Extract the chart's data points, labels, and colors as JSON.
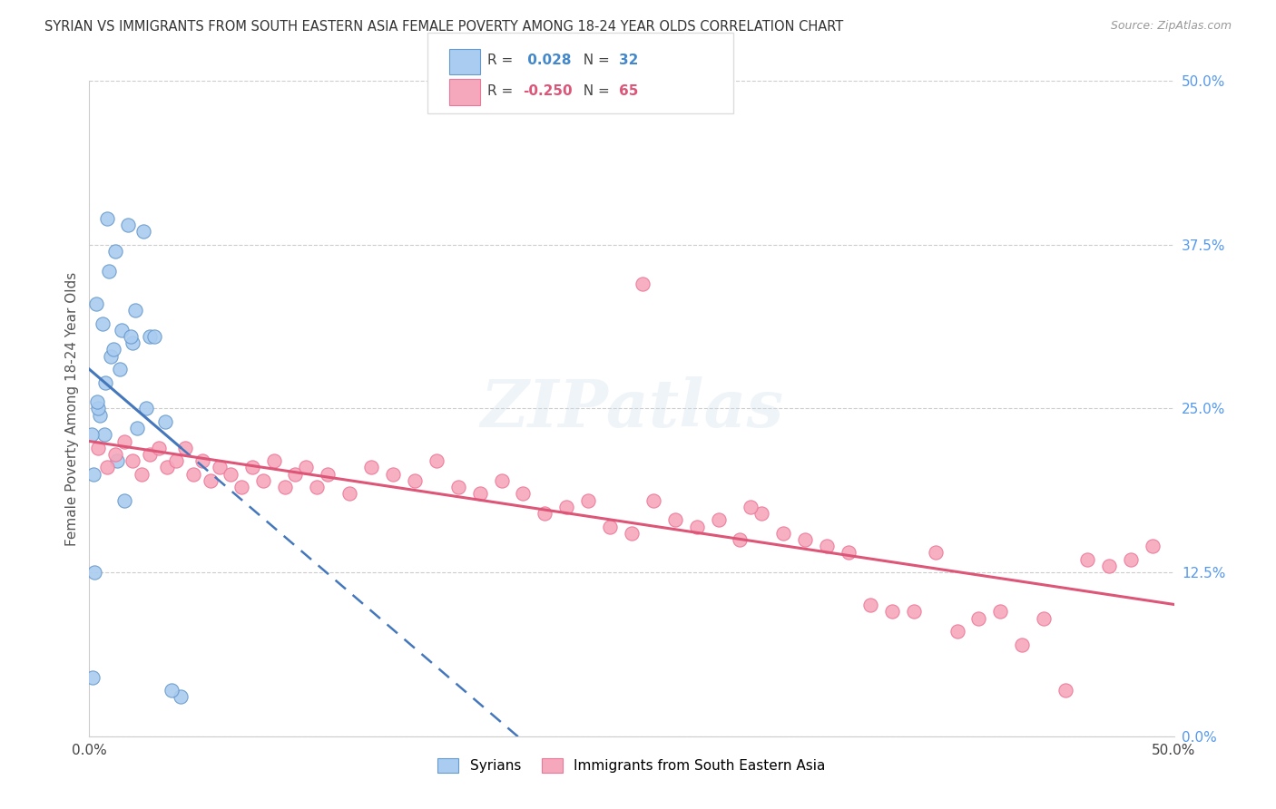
{
  "title": "SYRIAN VS IMMIGRANTS FROM SOUTH EASTERN ASIA FEMALE POVERTY AMONG 18-24 YEAR OLDS CORRELATION CHART",
  "source": "Source: ZipAtlas.com",
  "ylabel": "Female Poverty Among 18-24 Year Olds",
  "ytick_labels": [
    "0.0%",
    "12.5%",
    "25.0%",
    "37.5%",
    "50.0%"
  ],
  "ytick_values": [
    0.0,
    12.5,
    25.0,
    37.5,
    50.0
  ],
  "xlim": [
    0.0,
    50.0
  ],
  "ylim": [
    0.0,
    50.0
  ],
  "blue_R": 0.028,
  "blue_N": 32,
  "pink_R": -0.25,
  "pink_N": 65,
  "blue_color": "#aaccf0",
  "pink_color": "#f5a8bc",
  "blue_edge_color": "#6699cc",
  "pink_edge_color": "#ee7799",
  "blue_line_color": "#4477bb",
  "pink_line_color": "#dd5577",
  "watermark": "ZIPatlas",
  "legend_blue_label": "Syrians",
  "legend_pink_label": "Immigrants from South Eastern Asia",
  "blue_points_x": [
    0.5,
    1.2,
    1.8,
    0.3,
    0.8,
    2.0,
    2.5,
    0.2,
    0.4,
    0.7,
    1.0,
    1.5,
    2.8,
    3.5,
    0.9,
    0.6,
    1.1,
    1.4,
    0.35,
    0.75,
    2.2,
    3.0,
    0.25,
    1.3,
    1.9,
    0.15,
    2.6,
    4.2,
    1.6,
    2.1,
    0.1,
    3.8
  ],
  "blue_points_y": [
    24.5,
    37.0,
    39.0,
    33.0,
    39.5,
    30.0,
    38.5,
    20.0,
    25.0,
    23.0,
    29.0,
    31.0,
    30.5,
    24.0,
    35.5,
    31.5,
    29.5,
    28.0,
    25.5,
    27.0,
    23.5,
    30.5,
    12.5,
    21.0,
    30.5,
    4.5,
    25.0,
    3.0,
    18.0,
    32.5,
    23.0,
    3.5
  ],
  "pink_points_x": [
    0.4,
    0.8,
    1.2,
    1.6,
    2.0,
    2.4,
    2.8,
    3.2,
    3.6,
    4.0,
    4.4,
    4.8,
    5.2,
    5.6,
    6.0,
    6.5,
    7.0,
    7.5,
    8.0,
    8.5,
    9.0,
    9.5,
    10.0,
    10.5,
    11.0,
    12.0,
    13.0,
    14.0,
    15.0,
    16.0,
    17.0,
    18.0,
    19.0,
    20.0,
    21.0,
    22.0,
    23.0,
    24.0,
    25.0,
    26.0,
    27.0,
    28.0,
    29.0,
    30.0,
    31.0,
    32.0,
    33.0,
    34.0,
    35.0,
    36.0,
    37.0,
    38.0,
    39.0,
    40.0,
    41.0,
    42.0,
    43.0,
    44.0,
    45.0,
    46.0,
    47.0,
    48.0,
    49.0,
    25.5,
    30.5
  ],
  "pink_points_y": [
    22.0,
    20.5,
    21.5,
    22.5,
    21.0,
    20.0,
    21.5,
    22.0,
    20.5,
    21.0,
    22.0,
    20.0,
    21.0,
    19.5,
    20.5,
    20.0,
    19.0,
    20.5,
    19.5,
    21.0,
    19.0,
    20.0,
    20.5,
    19.0,
    20.0,
    18.5,
    20.5,
    20.0,
    19.5,
    21.0,
    19.0,
    18.5,
    19.5,
    18.5,
    17.0,
    17.5,
    18.0,
    16.0,
    15.5,
    18.0,
    16.5,
    16.0,
    16.5,
    15.0,
    17.0,
    15.5,
    15.0,
    14.5,
    14.0,
    10.0,
    9.5,
    9.5,
    14.0,
    8.0,
    9.0,
    9.5,
    7.0,
    9.0,
    3.5,
    13.5,
    13.0,
    13.5,
    14.5,
    34.5,
    17.5
  ]
}
